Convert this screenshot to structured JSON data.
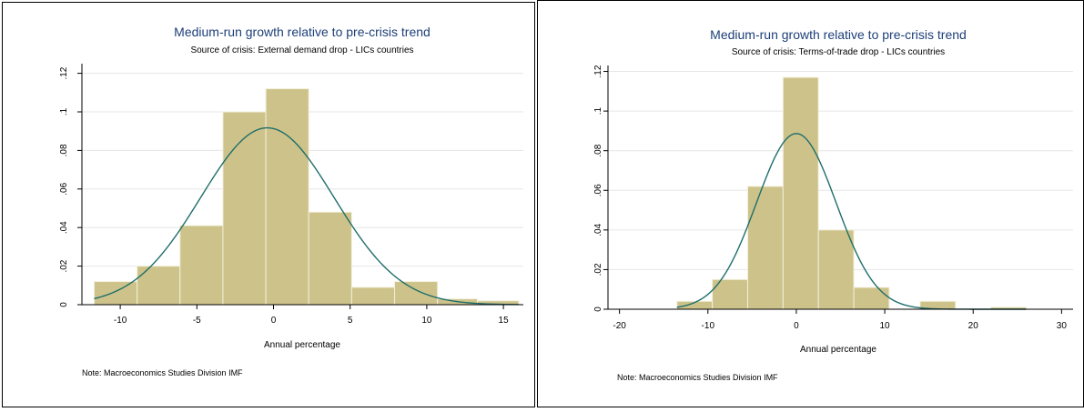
{
  "colors": {
    "bar_fill": "#cdc38a",
    "bar_stroke": "#f3efdc",
    "curve": "#1f6e6a",
    "grid": "#e6e6e6",
    "title": "#1d3f78",
    "text": "#000000"
  },
  "chart_data": [
    {
      "type": "bar",
      "subtype": "histogram-with-normal-density",
      "title": "Medium-run growth relative to pre-crisis trend",
      "subtitle": "Source of crisis: External demand drop - LICs countries",
      "xlabel": "Annual percentage",
      "ylabel": "",
      "note": "Note: Macroeconomics Studies Division IMF",
      "xlim": [
        -12.5,
        16.3
      ],
      "ylim": [
        0,
        0.125
      ],
      "xticks": [
        -10,
        -5,
        0,
        5,
        10,
        15
      ],
      "xtick_labels": [
        "-10",
        "-5",
        "0",
        "5",
        "10",
        "15"
      ],
      "yticks": [
        0,
        0.02,
        0.04,
        0.06,
        0.08,
        0.1,
        0.12
      ],
      "ytick_labels": [
        "0",
        ".02",
        ".04",
        ".06",
        ".08",
        ".1",
        ".12"
      ],
      "grid": true,
      "bins": [
        {
          "x0": -11.7,
          "x1": -8.9,
          "density": 0.012
        },
        {
          "x0": -8.9,
          "x1": -6.1,
          "density": 0.02
        },
        {
          "x0": -6.1,
          "x1": -3.3,
          "density": 0.041
        },
        {
          "x0": -3.3,
          "x1": -0.5,
          "density": 0.1
        },
        {
          "x0": -0.5,
          "x1": 2.3,
          "density": 0.112
        },
        {
          "x0": 2.3,
          "x1": 5.1,
          "density": 0.048
        },
        {
          "x0": 5.1,
          "x1": 7.9,
          "density": 0.009
        },
        {
          "x0": 7.9,
          "x1": 10.7,
          "density": 0.012
        },
        {
          "x0": 10.7,
          "x1": 13.3,
          "density": 0.003
        },
        {
          "x0": 13.3,
          "x1": 16.0,
          "density": 0.002
        }
      ],
      "normal_curve": {
        "mean": -0.4,
        "sd": 4.35
      }
    },
    {
      "type": "bar",
      "subtype": "histogram-with-normal-density",
      "title": "Medium-run growth relative to pre-crisis trend",
      "subtitle": "Source of crisis: Terms-of-trade drop - LICs countries",
      "xlabel": "Annual percentage",
      "ylabel": "",
      "note": "Note: Macroeconomics Studies Division IMF",
      "xlim": [
        -21.3,
        31.3
      ],
      "ylim": [
        0,
        0.123
      ],
      "xticks": [
        -20,
        -10,
        0,
        10,
        20,
        30
      ],
      "xtick_labels": [
        "-20",
        "-10",
        "0",
        "10",
        "20",
        "30"
      ],
      "yticks": [
        0,
        0.02,
        0.04,
        0.06,
        0.08,
        0.1,
        0.12
      ],
      "ytick_labels": [
        "0",
        ".02",
        ".04",
        ".06",
        ".08",
        ".1",
        ".12"
      ],
      "grid": true,
      "bins": [
        {
          "x0": -13.5,
          "x1": -9.5,
          "density": 0.004
        },
        {
          "x0": -9.5,
          "x1": -5.5,
          "density": 0.015
        },
        {
          "x0": -5.5,
          "x1": -1.5,
          "density": 0.062
        },
        {
          "x0": -1.5,
          "x1": 2.5,
          "density": 0.117
        },
        {
          "x0": 2.5,
          "x1": 6.5,
          "density": 0.04
        },
        {
          "x0": 6.5,
          "x1": 10.5,
          "density": 0.011
        },
        {
          "x0": 14.0,
          "x1": 18.0,
          "density": 0.004
        },
        {
          "x0": 22.0,
          "x1": 26.0,
          "density": 0.001
        }
      ],
      "normal_curve": {
        "mean": 0.0,
        "sd": 4.5
      }
    }
  ]
}
